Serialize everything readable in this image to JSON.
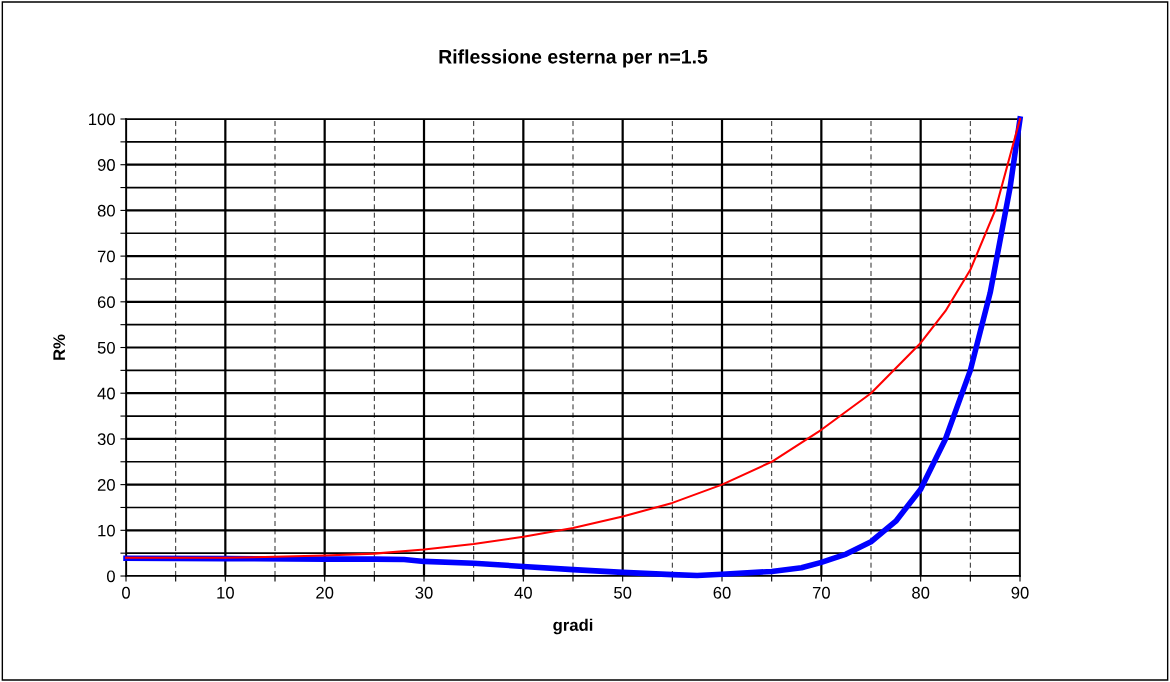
{
  "chart_data": {
    "type": "line",
    "title": "Riflessione esterna per n=1.5",
    "xlabel": "gradi",
    "ylabel": "R%",
    "xlim": [
      0,
      90
    ],
    "ylim": [
      0,
      100
    ],
    "xticks": [
      0,
      {
        "value": 5,
        "label": null
      },
      10,
      {
        "value": 15,
        "label": null
      },
      20,
      {
        "value": 25,
        "label": null
      },
      30,
      {
        "value": 35,
        "label": null
      },
      40,
      {
        "value": 45,
        "label": null
      },
      50,
      {
        "value": 55,
        "label": null
      },
      60,
      {
        "value": 65,
        "label": null
      },
      70,
      {
        "value": 75,
        "label": null
      },
      80,
      {
        "value": 85,
        "label": null
      },
      90
    ],
    "yticks": [
      0,
      {
        "value": 5,
        "label": null
      },
      10,
      {
        "value": 15,
        "label": null
      },
      20,
      {
        "value": 25,
        "label": null
      },
      30,
      {
        "value": 35,
        "label": null
      },
      40,
      {
        "value": 45,
        "label": null
      },
      50,
      {
        "value": 55,
        "label": null
      },
      60,
      {
        "value": 65,
        "label": null
      },
      70,
      {
        "value": 75,
        "label": null
      },
      80,
      {
        "value": 85,
        "label": null
      },
      90,
      {
        "value": 95,
        "label": null
      },
      100
    ],
    "grid": true,
    "marker": "none",
    "line_style": "solid",
    "series": [
      {
        "color": "#ff0000",
        "x": [
          0,
          5,
          10,
          15,
          20,
          25,
          30,
          35,
          40,
          45,
          50,
          55,
          60,
          65,
          70,
          75,
          80,
          82.5,
          85,
          87.5,
          90
        ],
        "values": [
          4,
          4,
          4,
          4.2,
          4.5,
          4.9,
          5.8,
          7,
          8.6,
          10.5,
          13,
          16,
          20,
          25,
          32,
          40,
          51,
          58,
          67,
          80,
          100
        ]
      },
      {
        "color": "#0000ff",
        "x": [
          0,
          10,
          20,
          25,
          28,
          30,
          35,
          40,
          45,
          50,
          55,
          57.5,
          60,
          65,
          68,
          70,
          72.5,
          75,
          77.5,
          80,
          82.5,
          85,
          87,
          89,
          90
        ],
        "values": [
          3.9,
          3.8,
          3.7,
          3.7,
          3.6,
          3.2,
          2.8,
          2.1,
          1.4,
          0.8,
          0.3,
          0.1,
          0.4,
          1.0,
          1.8,
          3,
          4.8,
          7.5,
          12,
          19,
          30,
          45,
          62,
          85,
          100
        ]
      }
    ]
  }
}
